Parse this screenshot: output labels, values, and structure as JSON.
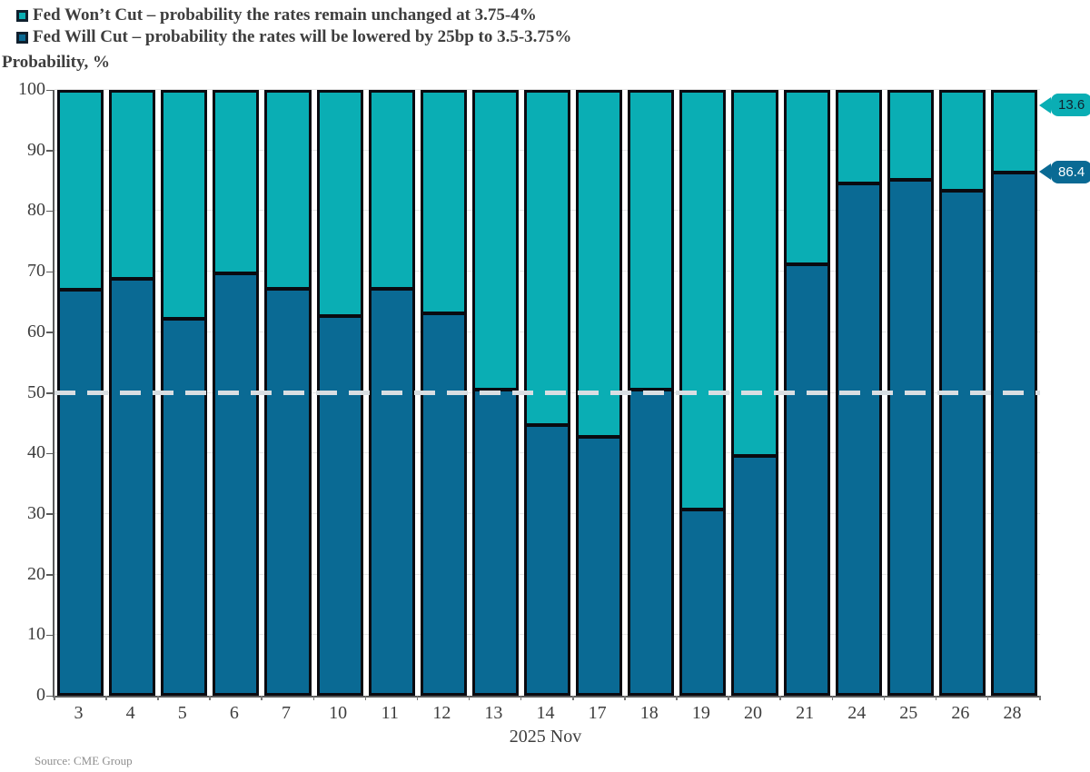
{
  "legend": {
    "items": [
      {
        "label": "Fed Won’t Cut – probability the rates remain unchanged at 3.75-4%",
        "color": "#0aaeb4"
      },
      {
        "label": "Fed Will Cut – probability the rates will be lowered by 25bp to 3.5-3.75%",
        "color": "#0a6a94"
      }
    ]
  },
  "y_axis_title": "Probability, %",
  "x_axis_title": "2025 Nov",
  "source": "Source: CME Group",
  "callouts": [
    {
      "value": "13.6",
      "bg_color": "#0aaeb4",
      "text_color": "#10222e",
      "y_percent": 100
    },
    {
      "value": "86.4",
      "bg_color": "#0a6a94",
      "text_color": "#ffffff",
      "y_percent": 86.4
    }
  ],
  "chart_data": {
    "type": "bar",
    "stacked": true,
    "title": "",
    "xlabel": "2025 Nov",
    "ylabel": "Probability, %",
    "ylim": [
      0,
      100
    ],
    "yticks": [
      0,
      10,
      20,
      30,
      40,
      50,
      60,
      70,
      80,
      90,
      100
    ],
    "grid": true,
    "legend_position": "top-left",
    "reference_line": {
      "y": 50,
      "style": "dashed",
      "color": "#d9dee2"
    },
    "categories": [
      "3",
      "4",
      "5",
      "6",
      "7",
      "10",
      "11",
      "12",
      "13",
      "14",
      "17",
      "18",
      "19",
      "20",
      "21",
      "24",
      "25",
      "26",
      "28"
    ],
    "series": [
      {
        "name": "Fed Will Cut – probability the rates will be lowered by 25bp to 3.5-3.75%",
        "color": "#0a6a94",
        "position": "bottom",
        "values": [
          66.9,
          68.7,
          62.1,
          69.6,
          67.0,
          62.5,
          67.0,
          63.0,
          50.3,
          44.4,
          42.4,
          50.3,
          30.2,
          39.2,
          71.1,
          84.5,
          85.2,
          83.4,
          86.4
        ]
      },
      {
        "name": "Fed Won’t Cut – probability the rates remain unchanged at 3.75-4%",
        "color": "#0aaeb4",
        "position": "top",
        "values": [
          33.1,
          31.3,
          37.9,
          30.4,
          33.0,
          37.5,
          33.0,
          37.0,
          49.7,
          55.6,
          57.6,
          49.7,
          69.8,
          60.8,
          28.9,
          15.5,
          14.8,
          16.6,
          13.6
        ]
      }
    ]
  }
}
